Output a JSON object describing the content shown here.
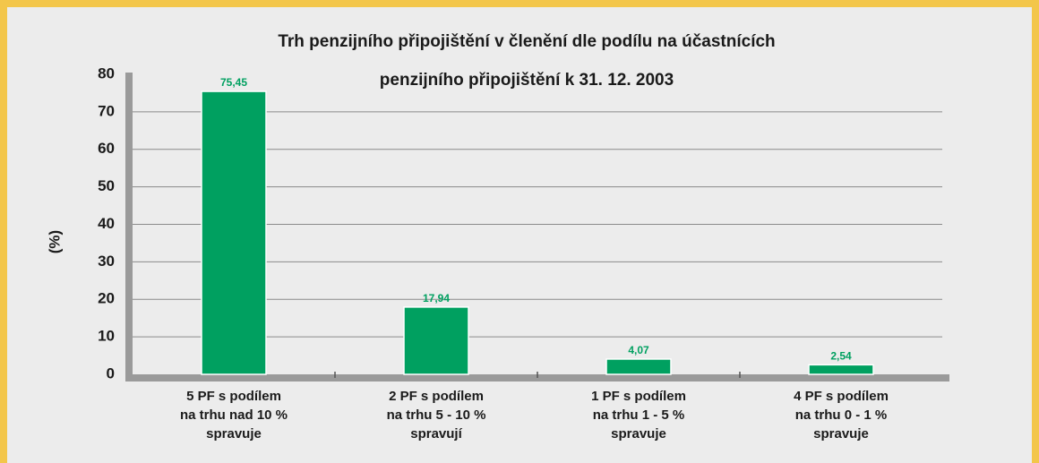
{
  "chart_data": {
    "type": "bar",
    "title": [
      "Trh penzijního připojištění v členění dle podílu na účastnících",
      "penzijního připojištění k 31. 12. 2003"
    ],
    "y_label": "(%)",
    "categories": [
      [
        "5 PF s podílem",
        "na trhu nad 10 %",
        "spravuje"
      ],
      [
        "2 PF s podílem",
        "na trhu 5 - 10 %",
        "spravují"
      ],
      [
        "1 PF s podílem",
        "na trhu 1 - 5 %",
        "spravuje"
      ],
      [
        "4 PF s podílem",
        "na trhu 0 - 1 %",
        "spravuje"
      ]
    ],
    "values": [
      75.45,
      17.94,
      4.07,
      2.54
    ],
    "value_labels": [
      "75,45",
      "17,94",
      "4,07",
      "2,54"
    ],
    "color": "#00a060",
    "ylim": [
      0,
      80
    ],
    "yticks": [
      0,
      10,
      20,
      30,
      40,
      50,
      60,
      70,
      80
    ],
    "grid": true
  }
}
